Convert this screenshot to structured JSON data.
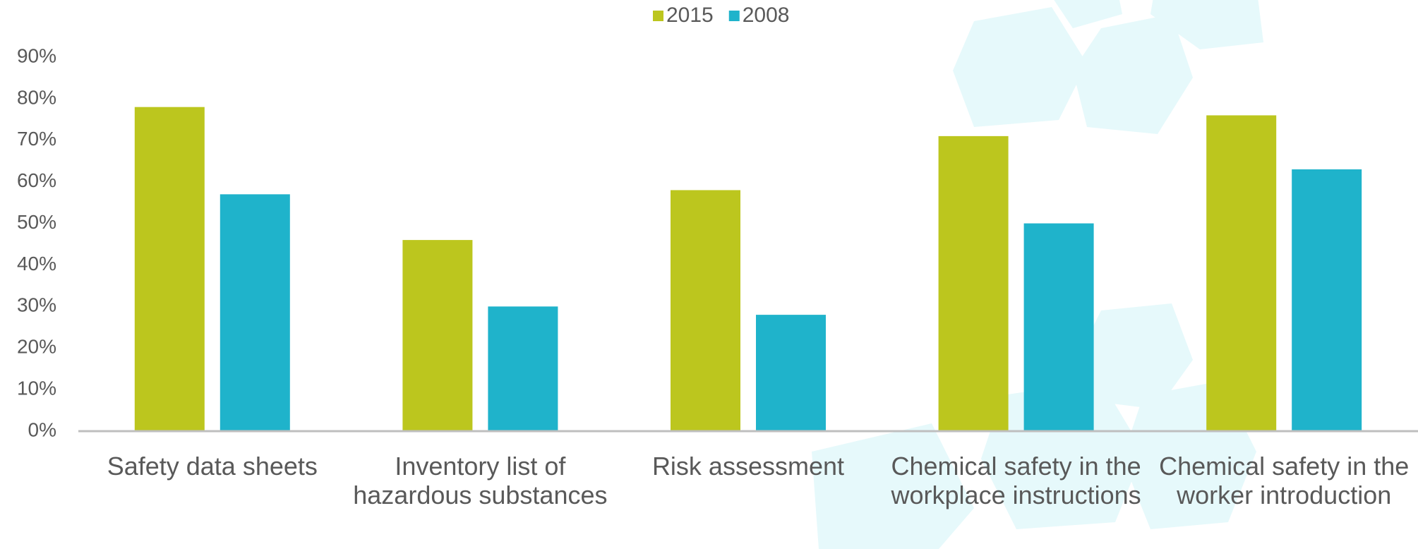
{
  "chart_data": {
    "type": "bar",
    "categories": [
      "Safety data sheets",
      "Inventory list of hazardous substances",
      "Risk assessment",
      "Chemical safety in the workplace instructions",
      "Chemical safety in the worker introduction"
    ],
    "series": [
      {
        "name": "2015",
        "color": "#bcc61e",
        "values": [
          78,
          46,
          58,
          71,
          76
        ]
      },
      {
        "name": "2008",
        "color": "#1fb3cb",
        "values": [
          57,
          30,
          28,
          50,
          63
        ]
      }
    ],
    "ylim": [
      0,
      90
    ],
    "yticks": [
      {
        "value": 0,
        "label": "0%"
      },
      {
        "value": 10,
        "label": "10%"
      },
      {
        "value": 20,
        "label": "20%"
      },
      {
        "value": 30,
        "label": "30%"
      },
      {
        "value": 40,
        "label": "40%"
      },
      {
        "value": 50,
        "label": "50%"
      },
      {
        "value": 60,
        "label": "60%"
      },
      {
        "value": 70,
        "label": "70%"
      },
      {
        "value": 80,
        "label": "80%"
      },
      {
        "value": 90,
        "label": "90%"
      }
    ],
    "grid": false,
    "legend": "top"
  }
}
